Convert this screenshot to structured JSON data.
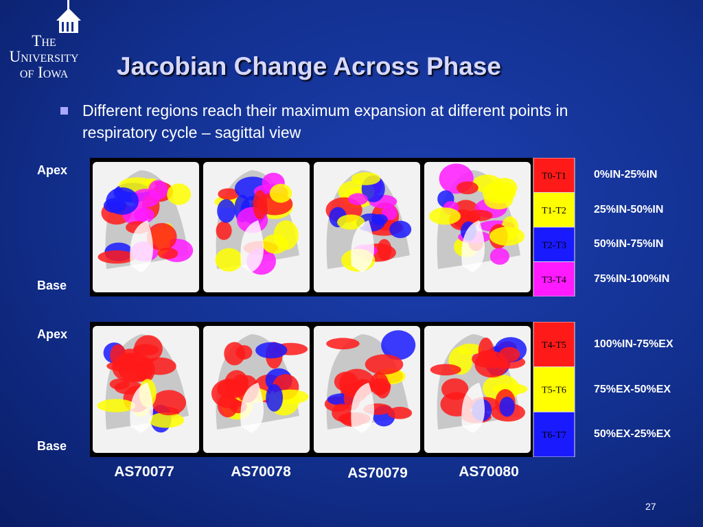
{
  "logo": [
    "The",
    "University",
    "of Iowa"
  ],
  "title": "Jacobian Change Across Phase",
  "bullet": "Different regions reach their maximum expansion at different points in respiratory cycle – sagittal view",
  "panels": [
    {
      "top_label": "Apex",
      "bottom_label": "Base",
      "legend": [
        {
          "key": "T0-T1",
          "range": "0%IN-25%IN",
          "color": "#ff1a1a"
        },
        {
          "key": "T1-T2",
          "range": "25%IN-50%IN",
          "color": "#ffff00"
        },
        {
          "key": "T2-T3",
          "range": "50%IN-75%IN",
          "color": "#1a1aff"
        },
        {
          "key": "T3-T4",
          "range": "75%IN-100%IN",
          "color": "#ff1aff"
        }
      ]
    },
    {
      "top_label": "Apex",
      "bottom_label": "Base",
      "legend": [
        {
          "key": "T4-T5",
          "range": "100%IN-75%EX",
          "color": "#ff1a1a"
        },
        {
          "key": "T5-T6",
          "range": "75%EX-50%EX",
          "color": "#ffff00"
        },
        {
          "key": "T6-T7",
          "range": "50%EX-25%EX",
          "color": "#1a1aff"
        }
      ]
    }
  ],
  "subjects": [
    "AS70077",
    "AS70078",
    "AS70079",
    "AS70080"
  ],
  "page_number": "27"
}
